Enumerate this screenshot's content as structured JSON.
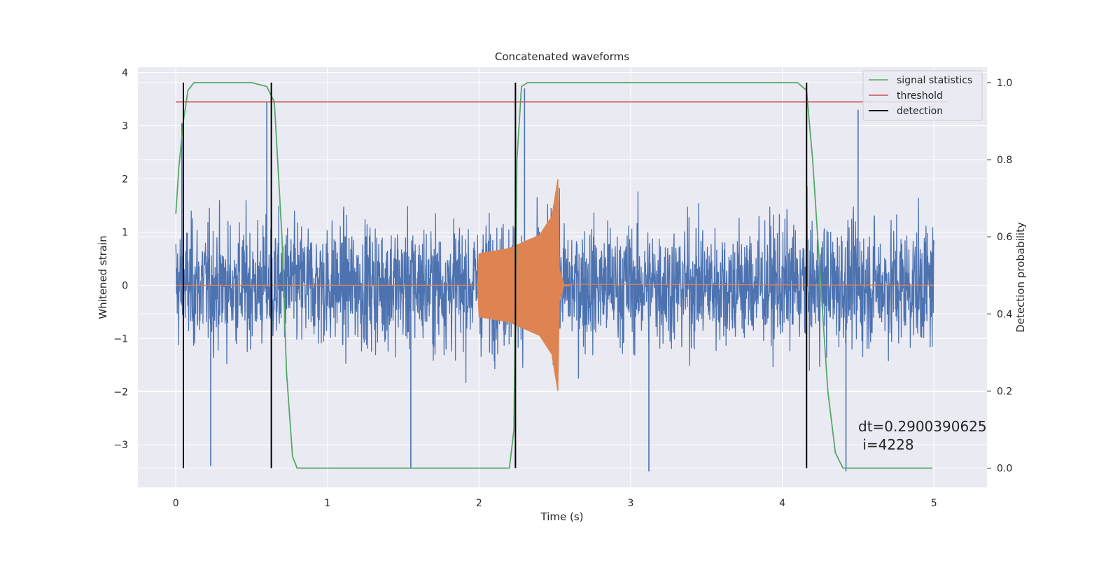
{
  "chart_data": {
    "type": "line",
    "title": "Concatenated waveforms",
    "xlabel": "Time (s)",
    "ylabel": "Whitened strain",
    "y2label": "Detection probability",
    "xlim": [
      -0.25,
      5.35
    ],
    "ylim": [
      -3.8,
      4.1
    ],
    "y2lim": [
      -0.05,
      1.04
    ],
    "xticks": [
      0,
      1,
      2,
      3,
      4,
      5
    ],
    "yticks": [
      -3,
      -2,
      -1,
      0,
      1,
      2,
      3,
      4
    ],
    "y2ticks": [
      0.0,
      0.2,
      0.4,
      0.6,
      0.8,
      1.0
    ],
    "grid": true,
    "legend_position": "top-right",
    "legend": [
      "signal statistics",
      "threshold",
      "detection"
    ],
    "colors": {
      "strain": "#4c72b0",
      "injected": "#dd8452",
      "signal_statistics": "#55a868",
      "threshold": "#c44e52",
      "detection": "#000000",
      "background": "#eaeaf2",
      "grid": "#ffffff"
    },
    "series": [
      {
        "role": "whitened strain (noise)",
        "axis": "left",
        "x_range": [
          0,
          5
        ],
        "envelope": {
          "typical_abs_max": 2.2,
          "extremes": [
            [
              0.04,
              3.05
            ],
            [
              0.23,
              -3.4
            ],
            [
              0.6,
              3.45
            ],
            [
              1.55,
              -3.45
            ],
            [
              2.3,
              3.7
            ],
            [
              3.12,
              -3.5
            ],
            [
              4.42,
              -3.5
            ],
            [
              4.5,
              3.3
            ]
          ]
        }
      },
      {
        "role": "injected waveform (chirp)",
        "axis": "left",
        "x": [
          1.99,
          2.0,
          2.2,
          2.4,
          2.48,
          2.52,
          2.53,
          2.56,
          5.0
        ],
        "amplitude": [
          0,
          0.6,
          0.7,
          0.95,
          1.3,
          2.0,
          0.3,
          0.02,
          0
        ]
      },
      {
        "name": "signal statistics",
        "axis": "right",
        "x": [
          0.0,
          0.02,
          0.05,
          0.08,
          0.12,
          0.5,
          0.6,
          0.65,
          0.7,
          0.73,
          0.77,
          0.8,
          2.2,
          2.23,
          2.25,
          2.28,
          2.32,
          4.1,
          4.16,
          4.2,
          4.25,
          4.3,
          4.35,
          4.4,
          4.99
        ],
        "values": [
          0.66,
          0.78,
          0.9,
          0.98,
          1.0,
          1.0,
          0.99,
          0.95,
          0.6,
          0.25,
          0.03,
          0.0,
          0.0,
          0.1,
          0.8,
          0.99,
          1.0,
          1.0,
          0.98,
          0.8,
          0.5,
          0.2,
          0.04,
          0.0,
          0.0
        ]
      },
      {
        "name": "threshold",
        "axis": "right",
        "x": [
          0,
          5.1
        ],
        "values": [
          0.95,
          0.95
        ]
      }
    ],
    "detections": [
      0.05,
      0.63,
      2.24,
      4.16
    ],
    "annotation": {
      "x": 4.52,
      "dt_text": "dt=0.2900390625",
      "i_text": " i=4228"
    }
  }
}
